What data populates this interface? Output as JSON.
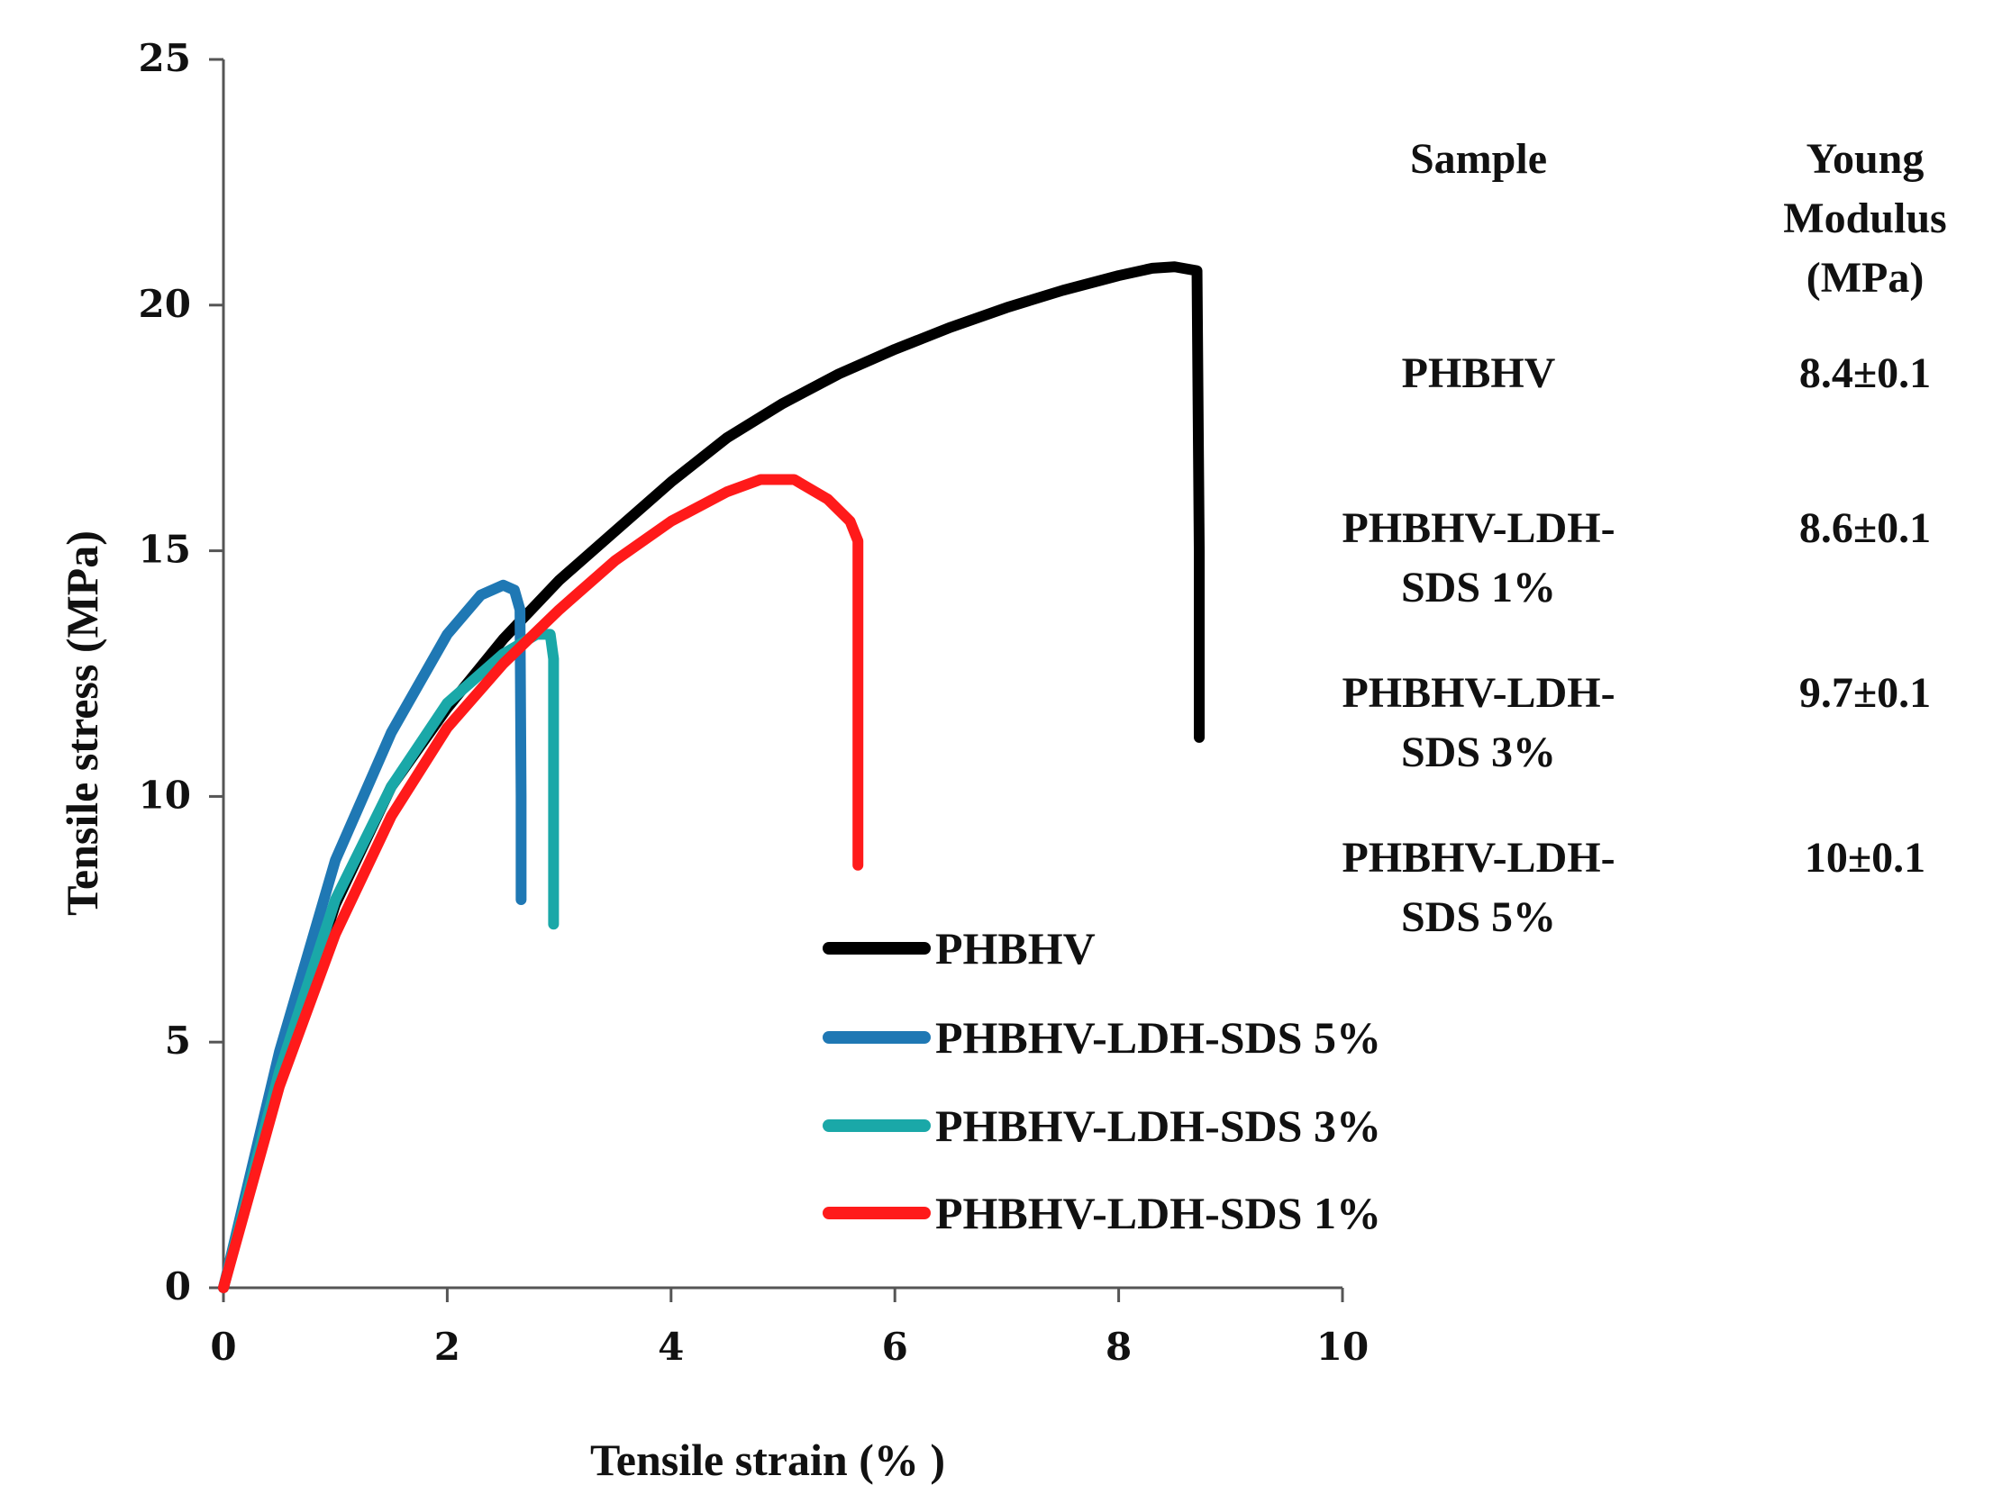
{
  "chart_data": {
    "type": "line",
    "title": "",
    "xlabel": "Tensile strain (% )",
    "ylabel": "Tensile stress (MPa)",
    "xlim": [
      0,
      10
    ],
    "ylim": [
      0,
      25
    ],
    "x_ticks": [
      "0",
      "2",
      "4",
      "6",
      "8",
      "10"
    ],
    "y_ticks": [
      "0",
      "5",
      "10",
      "15",
      "20",
      "25"
    ],
    "grid": false,
    "legend_position": "bottom-center",
    "series": [
      {
        "name": "PHBHV",
        "color": "#000000",
        "points": [
          [
            0,
            0
          ],
          [
            0.5,
            4.3
          ],
          [
            1,
            7.8
          ],
          [
            1.5,
            10.2
          ],
          [
            2,
            11.8
          ],
          [
            2.5,
            13.2
          ],
          [
            3,
            14.4
          ],
          [
            3.5,
            15.4
          ],
          [
            4,
            16.4
          ],
          [
            4.5,
            17.3
          ],
          [
            5,
            18
          ],
          [
            5.5,
            18.6
          ],
          [
            6,
            19.1
          ],
          [
            6.5,
            19.55
          ],
          [
            7,
            19.95
          ],
          [
            7.5,
            20.3
          ],
          [
            8,
            20.6
          ],
          [
            8.3,
            20.75
          ],
          [
            8.5,
            20.78
          ],
          [
            8.7,
            20.7
          ],
          [
            8.72,
            15
          ],
          [
            8.72,
            11.2
          ]
        ]
      },
      {
        "name": "PHBHV-LDH-SDS 5%",
        "color": "#1f78b4",
        "points": [
          [
            0,
            0
          ],
          [
            0.5,
            4.8
          ],
          [
            1,
            8.7
          ],
          [
            1.5,
            11.3
          ],
          [
            2,
            13.3
          ],
          [
            2.3,
            14.1
          ],
          [
            2.5,
            14.3
          ],
          [
            2.6,
            14.2
          ],
          [
            2.65,
            13.8
          ],
          [
            2.66,
            10
          ],
          [
            2.66,
            7.9
          ]
        ]
      },
      {
        "name": "PHBHV-LDH-SDS 3%",
        "color": "#1aa8a8",
        "points": [
          [
            0,
            0
          ],
          [
            0.5,
            4.4
          ],
          [
            1,
            7.9
          ],
          [
            1.5,
            10.2
          ],
          [
            2,
            11.9
          ],
          [
            2.5,
            12.9
          ],
          [
            2.8,
            13.3
          ],
          [
            2.92,
            13.3
          ],
          [
            2.95,
            12.8
          ],
          [
            2.95,
            10
          ],
          [
            2.95,
            7.4
          ]
        ]
      },
      {
        "name": "PHBHV-LDH-SDS 1%",
        "color": "#ff1a1a",
        "points": [
          [
            0,
            0
          ],
          [
            0.5,
            4.1
          ],
          [
            1,
            7.2
          ],
          [
            1.5,
            9.6
          ],
          [
            2,
            11.4
          ],
          [
            2.5,
            12.7
          ],
          [
            3,
            13.8
          ],
          [
            3.5,
            14.8
          ],
          [
            4,
            15.6
          ],
          [
            4.5,
            16.2
          ],
          [
            4.8,
            16.45
          ],
          [
            5.1,
            16.45
          ],
          [
            5.4,
            16.05
          ],
          [
            5.6,
            15.6
          ],
          [
            5.67,
            15.2
          ],
          [
            5.67,
            12
          ],
          [
            5.67,
            8.6
          ]
        ]
      }
    ],
    "table": {
      "headers": [
        "Sample",
        "Young Modulus (MPa)"
      ],
      "rows": [
        [
          "PHBHV",
          "8.4±0.1"
        ],
        [
          "PHBHV-LDH-SDS 1%",
          "8.6±0.1"
        ],
        [
          "PHBHV-LDH-SDS 3%",
          "9.7±0.1"
        ],
        [
          "PHBHV-LDH-SDS 5%",
          "10±0.1"
        ]
      ]
    }
  }
}
